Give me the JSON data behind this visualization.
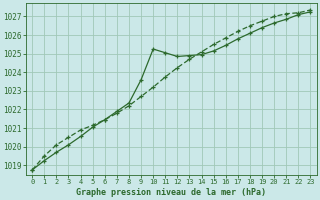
{
  "title": "Graphe pression niveau de la mer (hPa)",
  "background_color": "#cbe8e8",
  "plot_bg_color": "#cbe8e8",
  "grid_color": "#a0c8b8",
  "line_color": "#2d6a2d",
  "xlim": [
    -0.5,
    23.5
  ],
  "ylim": [
    1018.5,
    1027.7
  ],
  "yticks": [
    1019,
    1020,
    1021,
    1022,
    1023,
    1024,
    1025,
    1026,
    1027
  ],
  "xticks": [
    0,
    1,
    2,
    3,
    4,
    5,
    6,
    7,
    8,
    9,
    10,
    11,
    12,
    13,
    14,
    15,
    16,
    17,
    18,
    19,
    20,
    21,
    22,
    23
  ],
  "series1_x": [
    0,
    1,
    2,
    3,
    4,
    5,
    6,
    7,
    8,
    9,
    10,
    11,
    12,
    13,
    14,
    15,
    16,
    17,
    18,
    19,
    20,
    21,
    22,
    23
  ],
  "series1_y": [
    1018.75,
    1019.25,
    1019.7,
    1020.1,
    1020.55,
    1021.05,
    1021.45,
    1021.9,
    1022.35,
    1023.6,
    1025.25,
    1025.05,
    1024.85,
    1024.9,
    1024.95,
    1025.15,
    1025.45,
    1025.8,
    1026.1,
    1026.4,
    1026.65,
    1026.85,
    1027.1,
    1027.25
  ],
  "series2_x": [
    0,
    1,
    2,
    3,
    4,
    5,
    6,
    7,
    8,
    9,
    10,
    11,
    12,
    13,
    14,
    15,
    16,
    17,
    18,
    19,
    20,
    21,
    22,
    23
  ],
  "series2_y": [
    1018.75,
    1019.5,
    1020.1,
    1020.5,
    1020.9,
    1021.15,
    1021.45,
    1021.8,
    1022.2,
    1022.7,
    1023.2,
    1023.75,
    1024.25,
    1024.7,
    1025.1,
    1025.5,
    1025.85,
    1026.2,
    1026.5,
    1026.75,
    1027.0,
    1027.15,
    1027.2,
    1027.35
  ]
}
